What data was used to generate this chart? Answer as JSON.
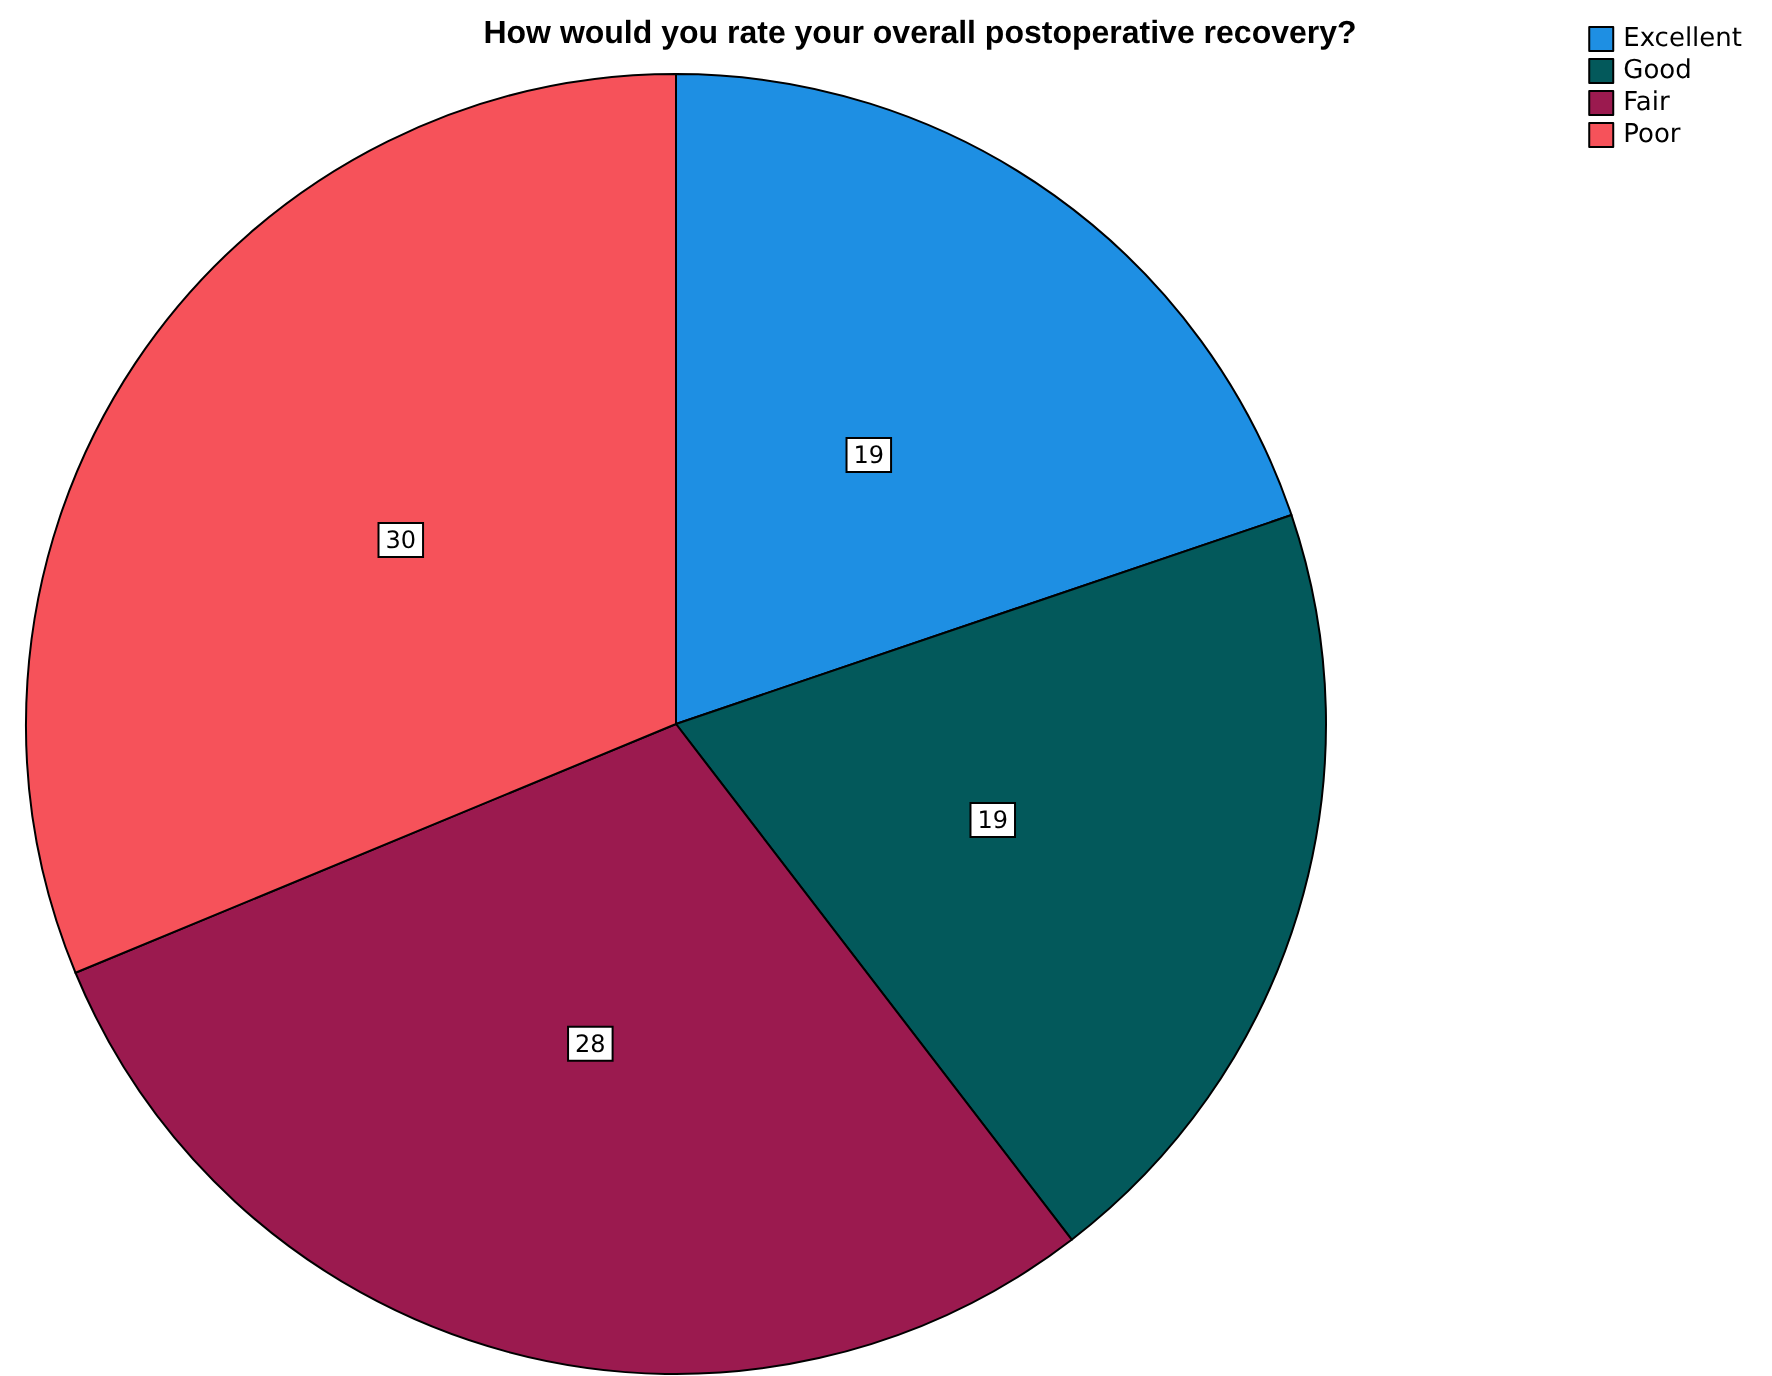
{
  "chart_data": {
    "type": "pie",
    "title": "How would you rate your overall postoperative recovery?",
    "categories": [
      "Excellent",
      "Good",
      "Fair",
      "Poor"
    ],
    "values": [
      19,
      19,
      28,
      30
    ],
    "colors": [
      "#1e8fe3",
      "#03595b",
      "#9b1a4f",
      "#f6525a"
    ],
    "data_labels": true,
    "legend": "top right"
  }
}
